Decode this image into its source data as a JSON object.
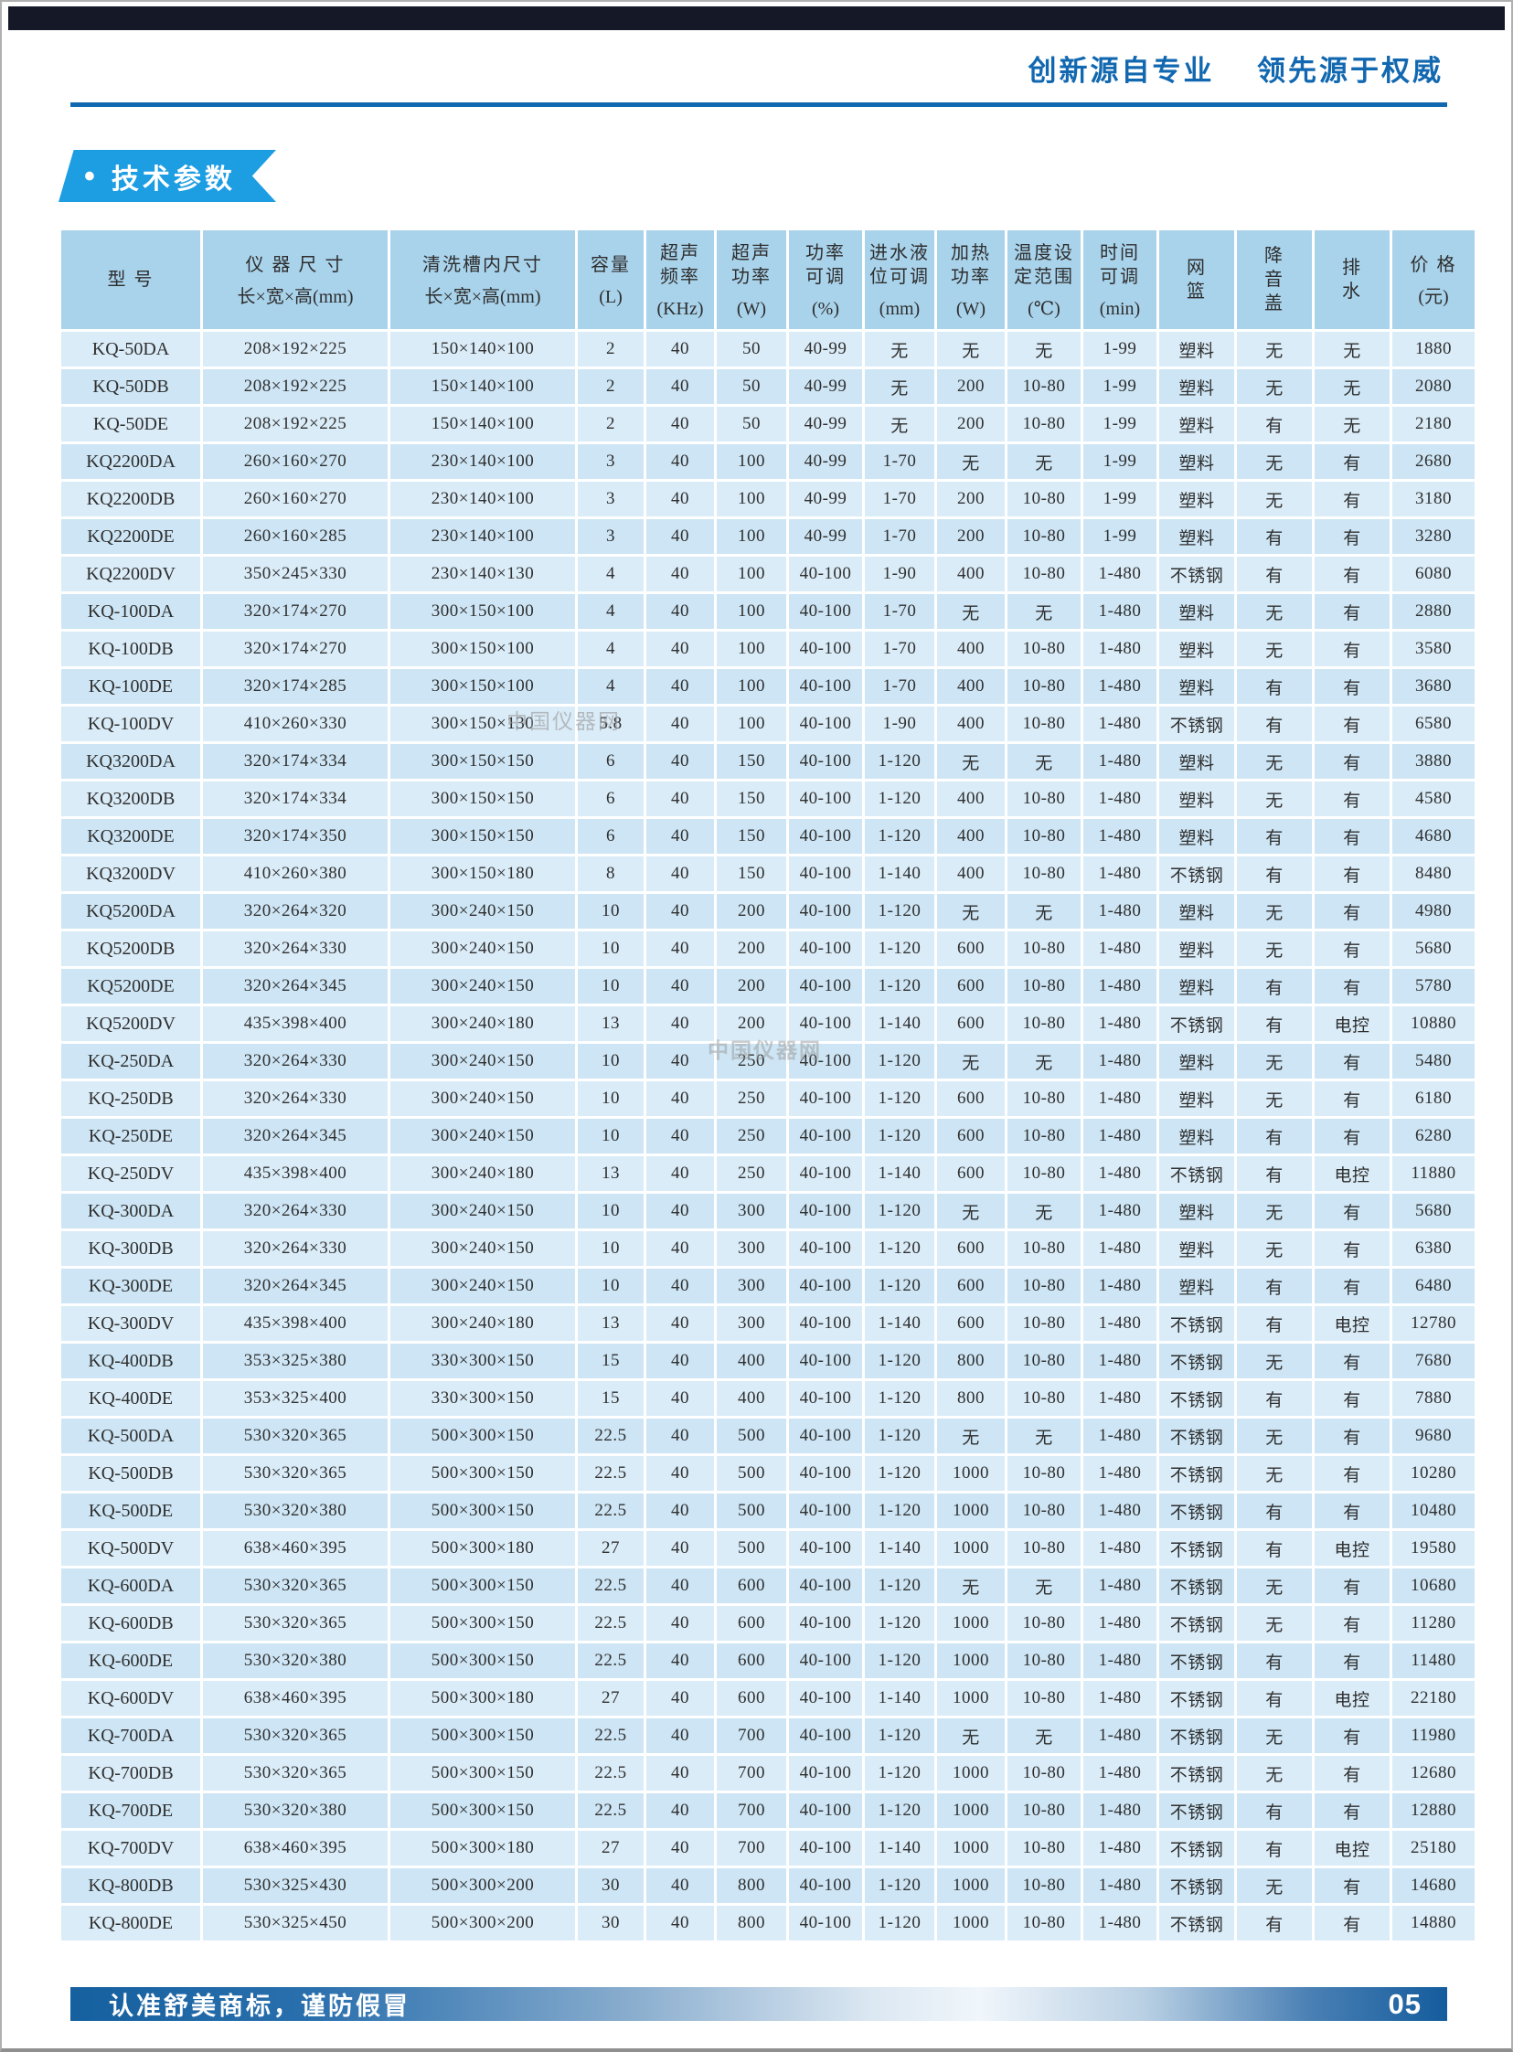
{
  "header": {
    "slogan": "创新源自专业    领先源于权威"
  },
  "badge": {
    "bullet": "•",
    "label": "技术参数"
  },
  "watermark": {
    "text": "中国仪器网"
  },
  "footer": {
    "notice": "认准舒美商标，谨防假冒",
    "page_number": "05"
  },
  "colors": {
    "accent_blue": "#1268b0",
    "badge_blue": "#1d9de2",
    "table_header_bg": "#a9d3eb",
    "row_light": "#daecf8",
    "row_dark": "#cde5f4",
    "topbar": "#141827"
  },
  "table": {
    "keys": [
      "model",
      "instrument_size",
      "tank_size",
      "capacity_L",
      "frequency_KHz",
      "power_W",
      "power_adjust_pct",
      "water_level_mm",
      "heating_W",
      "temp_range_C",
      "time_min",
      "basket",
      "sound_cover",
      "drain",
      "price_yuan"
    ],
    "columns": [
      {
        "title": "型  号",
        "unit": ""
      },
      {
        "title": "仪 器 尺 寸",
        "unit": "长×宽×高(mm)"
      },
      {
        "title": "清洗槽内尺寸",
        "unit": "长×宽×高(mm)"
      },
      {
        "title": "容量",
        "unit": "(L)"
      },
      {
        "title": "超声\n频率",
        "unit": "(KHz)"
      },
      {
        "title": "超声\n功率",
        "unit": "(W)"
      },
      {
        "title": "功率\n可调",
        "unit": "(%)"
      },
      {
        "title": "进水液\n位可调",
        "unit": "(mm)"
      },
      {
        "title": "加热\n功率",
        "unit": "(W)"
      },
      {
        "title": "温度设\n定范围",
        "unit": "(℃)"
      },
      {
        "title": "时间\n可调",
        "unit": "(min)"
      },
      {
        "title": "网\n篮",
        "unit": ""
      },
      {
        "title": "降\n音\n盖",
        "unit": ""
      },
      {
        "title": "排\n水",
        "unit": ""
      },
      {
        "title": "价 格",
        "unit": "(元)"
      }
    ],
    "rows": [
      [
        "KQ-50DA",
        "208×192×225",
        "150×140×100",
        "2",
        "40",
        "50",
        "40-99",
        "无",
        "无",
        "无",
        "1-99",
        "塑料",
        "无",
        "无",
        "1880"
      ],
      [
        "KQ-50DB",
        "208×192×225",
        "150×140×100",
        "2",
        "40",
        "50",
        "40-99",
        "无",
        "200",
        "10-80",
        "1-99",
        "塑料",
        "无",
        "无",
        "2080"
      ],
      [
        "KQ-50DE",
        "208×192×225",
        "150×140×100",
        "2",
        "40",
        "50",
        "40-99",
        "无",
        "200",
        "10-80",
        "1-99",
        "塑料",
        "有",
        "无",
        "2180"
      ],
      [
        "KQ2200DA",
        "260×160×270",
        "230×140×100",
        "3",
        "40",
        "100",
        "40-99",
        "1-70",
        "无",
        "无",
        "1-99",
        "塑料",
        "无",
        "有",
        "2680"
      ],
      [
        "KQ2200DB",
        "260×160×270",
        "230×140×100",
        "3",
        "40",
        "100",
        "40-99",
        "1-70",
        "200",
        "10-80",
        "1-99",
        "塑料",
        "无",
        "有",
        "3180"
      ],
      [
        "KQ2200DE",
        "260×160×285",
        "230×140×100",
        "3",
        "40",
        "100",
        "40-99",
        "1-70",
        "200",
        "10-80",
        "1-99",
        "塑料",
        "有",
        "有",
        "3280"
      ],
      [
        "KQ2200DV",
        "350×245×330",
        "230×140×130",
        "4",
        "40",
        "100",
        "40-100",
        "1-90",
        "400",
        "10-80",
        "1-480",
        "不锈钢",
        "有",
        "有",
        "6080"
      ],
      [
        "KQ-100DA",
        "320×174×270",
        "300×150×100",
        "4",
        "40",
        "100",
        "40-100",
        "1-70",
        "无",
        "无",
        "1-480",
        "塑料",
        "无",
        "有",
        "2880"
      ],
      [
        "KQ-100DB",
        "320×174×270",
        "300×150×100",
        "4",
        "40",
        "100",
        "40-100",
        "1-70",
        "400",
        "10-80",
        "1-480",
        "塑料",
        "无",
        "有",
        "3580"
      ],
      [
        "KQ-100DE",
        "320×174×285",
        "300×150×100",
        "4",
        "40",
        "100",
        "40-100",
        "1-70",
        "400",
        "10-80",
        "1-480",
        "塑料",
        "有",
        "有",
        "3680"
      ],
      [
        "KQ-100DV",
        "410×260×330",
        "300×150×130",
        "5.8",
        "40",
        "100",
        "40-100",
        "1-90",
        "400",
        "10-80",
        "1-480",
        "不锈钢",
        "有",
        "有",
        "6580"
      ],
      [
        "KQ3200DA",
        "320×174×334",
        "300×150×150",
        "6",
        "40",
        "150",
        "40-100",
        "1-120",
        "无",
        "无",
        "1-480",
        "塑料",
        "无",
        "有",
        "3880"
      ],
      [
        "KQ3200DB",
        "320×174×334",
        "300×150×150",
        "6",
        "40",
        "150",
        "40-100",
        "1-120",
        "400",
        "10-80",
        "1-480",
        "塑料",
        "无",
        "有",
        "4580"
      ],
      [
        "KQ3200DE",
        "320×174×350",
        "300×150×150",
        "6",
        "40",
        "150",
        "40-100",
        "1-120",
        "400",
        "10-80",
        "1-480",
        "塑料",
        "有",
        "有",
        "4680"
      ],
      [
        "KQ3200DV",
        "410×260×380",
        "300×150×180",
        "8",
        "40",
        "150",
        "40-100",
        "1-140",
        "400",
        "10-80",
        "1-480",
        "不锈钢",
        "有",
        "有",
        "8480"
      ],
      [
        "KQ5200DA",
        "320×264×320",
        "300×240×150",
        "10",
        "40",
        "200",
        "40-100",
        "1-120",
        "无",
        "无",
        "1-480",
        "塑料",
        "无",
        "有",
        "4980"
      ],
      [
        "KQ5200DB",
        "320×264×330",
        "300×240×150",
        "10",
        "40",
        "200",
        "40-100",
        "1-120",
        "600",
        "10-80",
        "1-480",
        "塑料",
        "无",
        "有",
        "5680"
      ],
      [
        "KQ5200DE",
        "320×264×345",
        "300×240×150",
        "10",
        "40",
        "200",
        "40-100",
        "1-120",
        "600",
        "10-80",
        "1-480",
        "塑料",
        "有",
        "有",
        "5780"
      ],
      [
        "KQ5200DV",
        "435×398×400",
        "300×240×180",
        "13",
        "40",
        "200",
        "40-100",
        "1-140",
        "600",
        "10-80",
        "1-480",
        "不锈钢",
        "有",
        "电控",
        "10880"
      ],
      [
        "KQ-250DA",
        "320×264×330",
        "300×240×150",
        "10",
        "40",
        "250",
        "40-100",
        "1-120",
        "无",
        "无",
        "1-480",
        "塑料",
        "无",
        "有",
        "5480"
      ],
      [
        "KQ-250DB",
        "320×264×330",
        "300×240×150",
        "10",
        "40",
        "250",
        "40-100",
        "1-120",
        "600",
        "10-80",
        "1-480",
        "塑料",
        "无",
        "有",
        "6180"
      ],
      [
        "KQ-250DE",
        "320×264×345",
        "300×240×150",
        "10",
        "40",
        "250",
        "40-100",
        "1-120",
        "600",
        "10-80",
        "1-480",
        "塑料",
        "有",
        "有",
        "6280"
      ],
      [
        "KQ-250DV",
        "435×398×400",
        "300×240×180",
        "13",
        "40",
        "250",
        "40-100",
        "1-140",
        "600",
        "10-80",
        "1-480",
        "不锈钢",
        "有",
        "电控",
        "11880"
      ],
      [
        "KQ-300DA",
        "320×264×330",
        "300×240×150",
        "10",
        "40",
        "300",
        "40-100",
        "1-120",
        "无",
        "无",
        "1-480",
        "塑料",
        "无",
        "有",
        "5680"
      ],
      [
        "KQ-300DB",
        "320×264×330",
        "300×240×150",
        "10",
        "40",
        "300",
        "40-100",
        "1-120",
        "600",
        "10-80",
        "1-480",
        "塑料",
        "无",
        "有",
        "6380"
      ],
      [
        "KQ-300DE",
        "320×264×345",
        "300×240×150",
        "10",
        "40",
        "300",
        "40-100",
        "1-120",
        "600",
        "10-80",
        "1-480",
        "塑料",
        "有",
        "有",
        "6480"
      ],
      [
        "KQ-300DV",
        "435×398×400",
        "300×240×180",
        "13",
        "40",
        "300",
        "40-100",
        "1-140",
        "600",
        "10-80",
        "1-480",
        "不锈钢",
        "有",
        "电控",
        "12780"
      ],
      [
        "KQ-400DB",
        "353×325×380",
        "330×300×150",
        "15",
        "40",
        "400",
        "40-100",
        "1-120",
        "800",
        "10-80",
        "1-480",
        "不锈钢",
        "无",
        "有",
        "7680"
      ],
      [
        "KQ-400DE",
        "353×325×400",
        "330×300×150",
        "15",
        "40",
        "400",
        "40-100",
        "1-120",
        "800",
        "10-80",
        "1-480",
        "不锈钢",
        "有",
        "有",
        "7880"
      ],
      [
        "KQ-500DA",
        "530×320×365",
        "500×300×150",
        "22.5",
        "40",
        "500",
        "40-100",
        "1-120",
        "无",
        "无",
        "1-480",
        "不锈钢",
        "无",
        "有",
        "9680"
      ],
      [
        "KQ-500DB",
        "530×320×365",
        "500×300×150",
        "22.5",
        "40",
        "500",
        "40-100",
        "1-120",
        "1000",
        "10-80",
        "1-480",
        "不锈钢",
        "无",
        "有",
        "10280"
      ],
      [
        "KQ-500DE",
        "530×320×380",
        "500×300×150",
        "22.5",
        "40",
        "500",
        "40-100",
        "1-120",
        "1000",
        "10-80",
        "1-480",
        "不锈钢",
        "有",
        "有",
        "10480"
      ],
      [
        "KQ-500DV",
        "638×460×395",
        "500×300×180",
        "27",
        "40",
        "500",
        "40-100",
        "1-140",
        "1000",
        "10-80",
        "1-480",
        "不锈钢",
        "有",
        "电控",
        "19580"
      ],
      [
        "KQ-600DA",
        "530×320×365",
        "500×300×150",
        "22.5",
        "40",
        "600",
        "40-100",
        "1-120",
        "无",
        "无",
        "1-480",
        "不锈钢",
        "无",
        "有",
        "10680"
      ],
      [
        "KQ-600DB",
        "530×320×365",
        "500×300×150",
        "22.5",
        "40",
        "600",
        "40-100",
        "1-120",
        "1000",
        "10-80",
        "1-480",
        "不锈钢",
        "无",
        "有",
        "11280"
      ],
      [
        "KQ-600DE",
        "530×320×380",
        "500×300×150",
        "22.5",
        "40",
        "600",
        "40-100",
        "1-120",
        "1000",
        "10-80",
        "1-480",
        "不锈钢",
        "有",
        "有",
        "11480"
      ],
      [
        "KQ-600DV",
        "638×460×395",
        "500×300×180",
        "27",
        "40",
        "600",
        "40-100",
        "1-140",
        "1000",
        "10-80",
        "1-480",
        "不锈钢",
        "有",
        "电控",
        "22180"
      ],
      [
        "KQ-700DA",
        "530×320×365",
        "500×300×150",
        "22.5",
        "40",
        "700",
        "40-100",
        "1-120",
        "无",
        "无",
        "1-480",
        "不锈钢",
        "无",
        "有",
        "11980"
      ],
      [
        "KQ-700DB",
        "530×320×365",
        "500×300×150",
        "22.5",
        "40",
        "700",
        "40-100",
        "1-120",
        "1000",
        "10-80",
        "1-480",
        "不锈钢",
        "无",
        "有",
        "12680"
      ],
      [
        "KQ-700DE",
        "530×320×380",
        "500×300×150",
        "22.5",
        "40",
        "700",
        "40-100",
        "1-120",
        "1000",
        "10-80",
        "1-480",
        "不锈钢",
        "有",
        "有",
        "12880"
      ],
      [
        "KQ-700DV",
        "638×460×395",
        "500×300×180",
        "27",
        "40",
        "700",
        "40-100",
        "1-140",
        "1000",
        "10-80",
        "1-480",
        "不锈钢",
        "有",
        "电控",
        "25180"
      ],
      [
        "KQ-800DB",
        "530×325×430",
        "500×300×200",
        "30",
        "40",
        "800",
        "40-100",
        "1-120",
        "1000",
        "10-80",
        "1-480",
        "不锈钢",
        "无",
        "有",
        "14680"
      ],
      [
        "KQ-800DE",
        "530×325×450",
        "500×300×200",
        "30",
        "40",
        "800",
        "40-100",
        "1-120",
        "1000",
        "10-80",
        "1-480",
        "不锈钢",
        "有",
        "有",
        "14880"
      ]
    ]
  }
}
